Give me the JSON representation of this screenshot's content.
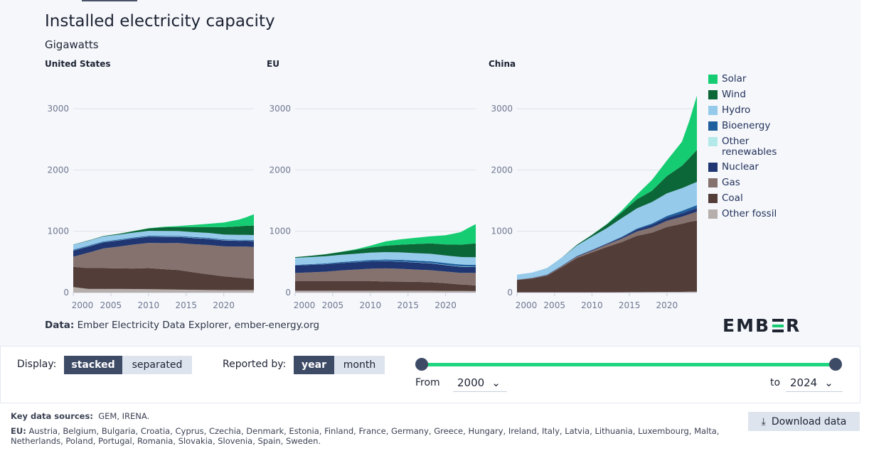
{
  "header": {
    "title": "Installed electricity capacity",
    "subtitle": "Gigawatts"
  },
  "legend": [
    {
      "name": "Solar",
      "color": "#16cc72"
    },
    {
      "name": "Wind",
      "color": "#0b6638"
    },
    {
      "name": "Hydro",
      "color": "#95caea"
    },
    {
      "name": "Bioenergy",
      "color": "#1f5f9e"
    },
    {
      "name": "Other renewables",
      "color": "#b4e9e9"
    },
    {
      "name": "Nuclear",
      "color": "#1f3672"
    },
    {
      "name": "Gas",
      "color": "#85726e"
    },
    {
      "name": "Coal",
      "color": "#533d39"
    },
    {
      "name": "Other fossil",
      "color": "#b5aeab"
    }
  ],
  "chart_data": [
    {
      "type": "area",
      "stacked": true,
      "title": "United States",
      "grid": true,
      "ylim": [
        0,
        3300
      ],
      "yticks": [
        0,
        1000,
        2000,
        3000
      ],
      "xticks": [
        2000,
        2005,
        2010,
        2015,
        2020
      ],
      "x": [
        2000,
        2002,
        2004,
        2006,
        2008,
        2010,
        2012,
        2014,
        2016,
        2018,
        2020,
        2022,
        2023,
        2024
      ],
      "series": [
        {
          "name": "Other fossil",
          "values": [
            90,
            60,
            60,
            60,
            58,
            55,
            52,
            48,
            45,
            42,
            40,
            40,
            40,
            40
          ]
        },
        {
          "name": "Coal",
          "values": [
            330,
            340,
            340,
            335,
            335,
            345,
            330,
            320,
            285,
            255,
            225,
            205,
            195,
            185
          ]
        },
        {
          "name": "Gas",
          "values": [
            165,
            250,
            320,
            355,
            390,
            410,
            425,
            440,
            460,
            480,
            490,
            505,
            515,
            520
          ]
        },
        {
          "name": "Nuclear",
          "values": [
            100,
            100,
            100,
            100,
            100,
            101,
            101,
            99,
            99,
            99,
            97,
            95,
            96,
            97
          ]
        },
        {
          "name": "Other renewables",
          "values": [
            3,
            3,
            3,
            3,
            3,
            3,
            4,
            4,
            4,
            4,
            4,
            4,
            4,
            4
          ]
        },
        {
          "name": "Bioenergy",
          "values": [
            12,
            12,
            12,
            12,
            12,
            13,
            13,
            13,
            13,
            13,
            12,
            12,
            12,
            12
          ]
        },
        {
          "name": "Hydro",
          "values": [
            80,
            80,
            80,
            80,
            80,
            80,
            80,
            80,
            80,
            80,
            80,
            80,
            80,
            80
          ]
        },
        {
          "name": "Wind",
          "values": [
            3,
            5,
            7,
            12,
            25,
            40,
            60,
            65,
            82,
            95,
            120,
            140,
            148,
            155
          ]
        },
        {
          "name": "Solar",
          "values": [
            0,
            0,
            0,
            0,
            1,
            3,
            8,
            18,
            35,
            55,
            75,
            110,
            140,
            185
          ]
        }
      ]
    },
    {
      "type": "area",
      "stacked": true,
      "title": "EU",
      "grid": true,
      "ylim": [
        0,
        3300
      ],
      "yticks": [
        0,
        1000,
        2000,
        3000
      ],
      "xticks": [
        2000,
        2005,
        2010,
        2015,
        2020
      ],
      "x": [
        2000,
        2002,
        2004,
        2006,
        2008,
        2010,
        2012,
        2014,
        2016,
        2018,
        2020,
        2022,
        2023,
        2024
      ],
      "series": [
        {
          "name": "Other fossil",
          "values": [
            30,
            30,
            30,
            30,
            30,
            30,
            30,
            30,
            30,
            30,
            28,
            27,
            26,
            25
          ]
        },
        {
          "name": "Coal",
          "values": [
            160,
            160,
            160,
            160,
            160,
            160,
            150,
            148,
            145,
            140,
            125,
            105,
            100,
            90
          ]
        },
        {
          "name": "Gas",
          "values": [
            130,
            140,
            150,
            170,
            185,
            200,
            215,
            210,
            200,
            195,
            190,
            190,
            195,
            205
          ]
        },
        {
          "name": "Nuclear",
          "values": [
            122,
            122,
            122,
            121,
            120,
            120,
            118,
            117,
            115,
            112,
            105,
            100,
            98,
            97
          ]
        },
        {
          "name": "Other renewables",
          "values": [
            1,
            1,
            1,
            2,
            2,
            2,
            3,
            3,
            3,
            4,
            4,
            5,
            5,
            5
          ]
        },
        {
          "name": "Bioenergy",
          "values": [
            8,
            10,
            12,
            14,
            17,
            20,
            23,
            26,
            28,
            29,
            30,
            30,
            30,
            30
          ]
        },
        {
          "name": "Hydro",
          "values": [
            115,
            116,
            117,
            118,
            119,
            120,
            121,
            122,
            122,
            123,
            123,
            124,
            124,
            125
          ]
        },
        {
          "name": "Wind",
          "values": [
            12,
            20,
            33,
            45,
            63,
            83,
            105,
            125,
            150,
            170,
            180,
            200,
            215,
            225
          ]
        },
        {
          "name": "Solar",
          "values": [
            0,
            0,
            1,
            3,
            10,
            30,
            70,
            88,
            100,
            115,
            150,
            205,
            260,
            315
          ]
        }
      ]
    },
    {
      "type": "area",
      "stacked": true,
      "title": "China",
      "grid": true,
      "ylim": [
        0,
        3300
      ],
      "yticks": [
        0,
        1000,
        2000,
        3000
      ],
      "xticks": [
        2000,
        2005,
        2010,
        2015,
        2020
      ],
      "x": [
        2000,
        2002,
        2004,
        2006,
        2008,
        2010,
        2012,
        2014,
        2016,
        2018,
        2020,
        2022,
        2023,
        2024
      ],
      "series": [
        {
          "name": "Other fossil",
          "values": [
            5,
            5,
            5,
            5,
            5,
            5,
            5,
            6,
            7,
            8,
            10,
            12,
            14,
            15
          ]
        },
        {
          "name": "Coal",
          "values": [
            200,
            225,
            270,
            410,
            560,
            650,
            740,
            820,
            920,
            970,
            1060,
            1110,
            1140,
            1160
          ]
        },
        {
          "name": "Gas",
          "values": [
            5,
            6,
            8,
            15,
            20,
            26,
            38,
            55,
            70,
            85,
            100,
            115,
            125,
            145
          ]
        },
        {
          "name": "Nuclear",
          "values": [
            2,
            4,
            7,
            7,
            9,
            11,
            13,
            20,
            33,
            45,
            50,
            55,
            57,
            60
          ]
        },
        {
          "name": "Other renewables",
          "values": [
            0,
            0,
            0,
            0,
            0,
            0,
            0,
            0,
            0,
            0,
            0,
            0,
            0,
            0
          ]
        },
        {
          "name": "Bioenergy",
          "values": [
            1,
            1,
            2,
            3,
            4,
            5,
            7,
            10,
            14,
            19,
            30,
            41,
            44,
            46
          ]
        },
        {
          "name": "Hydro",
          "values": [
            79,
            85,
            105,
            130,
            170,
            215,
            250,
            305,
            330,
            350,
            370,
            370,
            375,
            380
          ]
        },
        {
          "name": "Wind",
          "values": [
            0,
            0,
            1,
            2,
            12,
            30,
            62,
            97,
            148,
            185,
            282,
            365,
            441,
            521
          ]
        },
        {
          "name": "Solar",
          "values": [
            0,
            0,
            0,
            0,
            0,
            1,
            4,
            28,
            77,
            175,
            253,
            393,
            609,
            887
          ]
        }
      ]
    }
  ],
  "source": {
    "label": "Data:",
    "text": "Ember Electricity Data Explorer, ember-energy.org"
  },
  "logo": "EMBER",
  "controls": {
    "display_label": "Display:",
    "display_options": [
      "stacked",
      "separated"
    ],
    "display_selected": "stacked",
    "reported_label": "Reported by:",
    "reported_options": [
      "year",
      "month"
    ],
    "reported_selected": "year",
    "from_label": "From",
    "from_value": "2000",
    "to_label": "to",
    "to_value": "2024",
    "range_fraction": [
      0,
      1
    ]
  },
  "footer": {
    "sources_label": "Key data sources:",
    "sources_text": "GEM, IRENA.",
    "eu_label": "EU:",
    "eu_text": "Austria, Belgium, Bulgaria, Croatia, Cyprus, Czechia, Denmark, Estonia, Finland, France, Germany, Greece, Hungary, Ireland, Italy, Latvia, Lithuania, Luxembourg, Malta, Netherlands, Poland, Portugal, Romania, Slovakia, Slovenia, Spain, Sweden.",
    "download_label": "Download data"
  }
}
